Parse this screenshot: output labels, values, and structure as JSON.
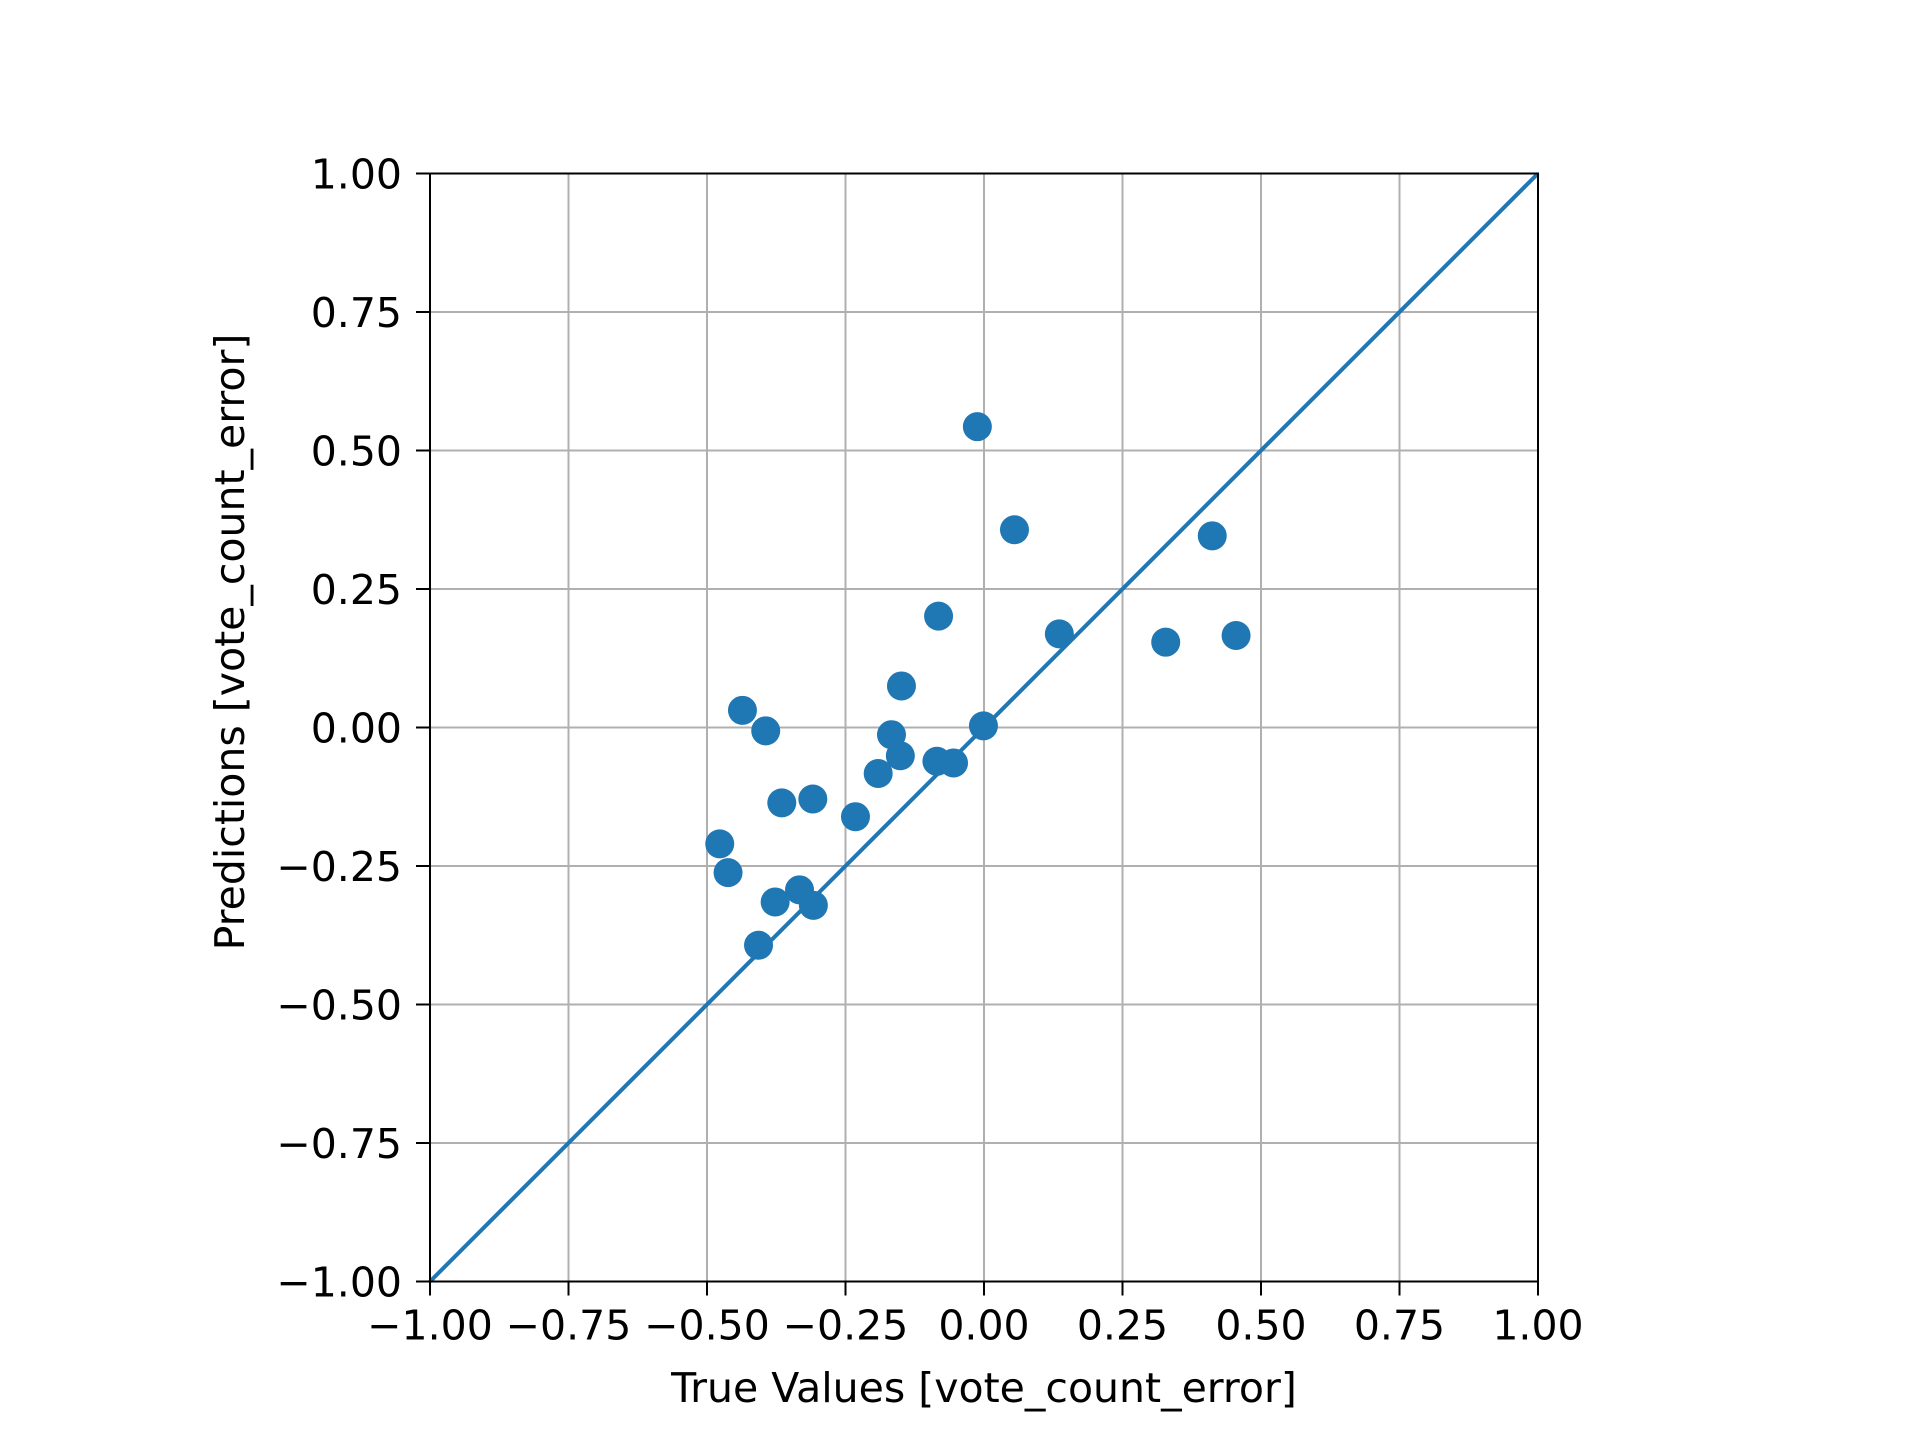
{
  "chart_data": {
    "type": "scatter",
    "title": "",
    "xlabel": "True Values [vote_count_error]",
    "ylabel": "Predictions [vote_count_error]",
    "xlim": [
      -1.0,
      1.0
    ],
    "ylim": [
      -1.0,
      1.0
    ],
    "grid": true,
    "legend": null,
    "xticks": [
      -1.0,
      -0.75,
      -0.5,
      -0.25,
      0.0,
      0.25,
      0.5,
      0.75,
      1.0
    ],
    "yticks": [
      -1.0,
      -0.75,
      -0.5,
      -0.25,
      0.0,
      0.25,
      0.5,
      0.75,
      1.0
    ],
    "xtick_labels": [
      "−1.00",
      "−0.75",
      "−0.50",
      "−0.25",
      "0.00",
      "0.25",
      "0.50",
      "0.75",
      "1.00"
    ],
    "ytick_labels": [
      "−1.00",
      "−0.75",
      "−0.50",
      "−0.25",
      "0.00",
      "0.25",
      "0.50",
      "0.75",
      "1.00"
    ],
    "series": [
      {
        "name": "predictions",
        "kind": "scatter",
        "color": "#1f77b4",
        "points": [
          {
            "x": -0.012,
            "y": 0.543
          },
          {
            "x": 0.055,
            "y": 0.357
          },
          {
            "x": 0.412,
            "y": 0.346
          },
          {
            "x": 0.136,
            "y": 0.169
          },
          {
            "x": 0.328,
            "y": 0.154
          },
          {
            "x": 0.455,
            "y": 0.166
          },
          {
            "x": -0.082,
            "y": 0.201
          },
          {
            "x": -0.149,
            "y": 0.075
          },
          {
            "x": -0.001,
            "y": 0.003
          },
          {
            "x": -0.167,
            "y": -0.013
          },
          {
            "x": -0.151,
            "y": -0.051
          },
          {
            "x": -0.085,
            "y": -0.061
          },
          {
            "x": -0.055,
            "y": -0.064
          },
          {
            "x": -0.436,
            "y": 0.031
          },
          {
            "x": -0.394,
            "y": -0.006
          },
          {
            "x": -0.365,
            "y": -0.136
          },
          {
            "x": -0.309,
            "y": -0.129
          },
          {
            "x": -0.232,
            "y": -0.161
          },
          {
            "x": -0.191,
            "y": -0.083
          },
          {
            "x": -0.477,
            "y": -0.21
          },
          {
            "x": -0.462,
            "y": -0.262
          },
          {
            "x": -0.377,
            "y": -0.315
          },
          {
            "x": -0.333,
            "y": -0.293
          },
          {
            "x": -0.308,
            "y": -0.321
          },
          {
            "x": -0.407,
            "y": -0.393
          }
        ]
      },
      {
        "name": "identity line",
        "kind": "line",
        "color": "#1f77b4",
        "points": [
          {
            "x": -1.0,
            "y": -1.0
          },
          {
            "x": 1.0,
            "y": 1.0
          }
        ]
      }
    ]
  },
  "colors": {
    "marker": "#1f77b4",
    "grid": "#b0b0b0",
    "axes": "#000000",
    "background": "#ffffff"
  }
}
